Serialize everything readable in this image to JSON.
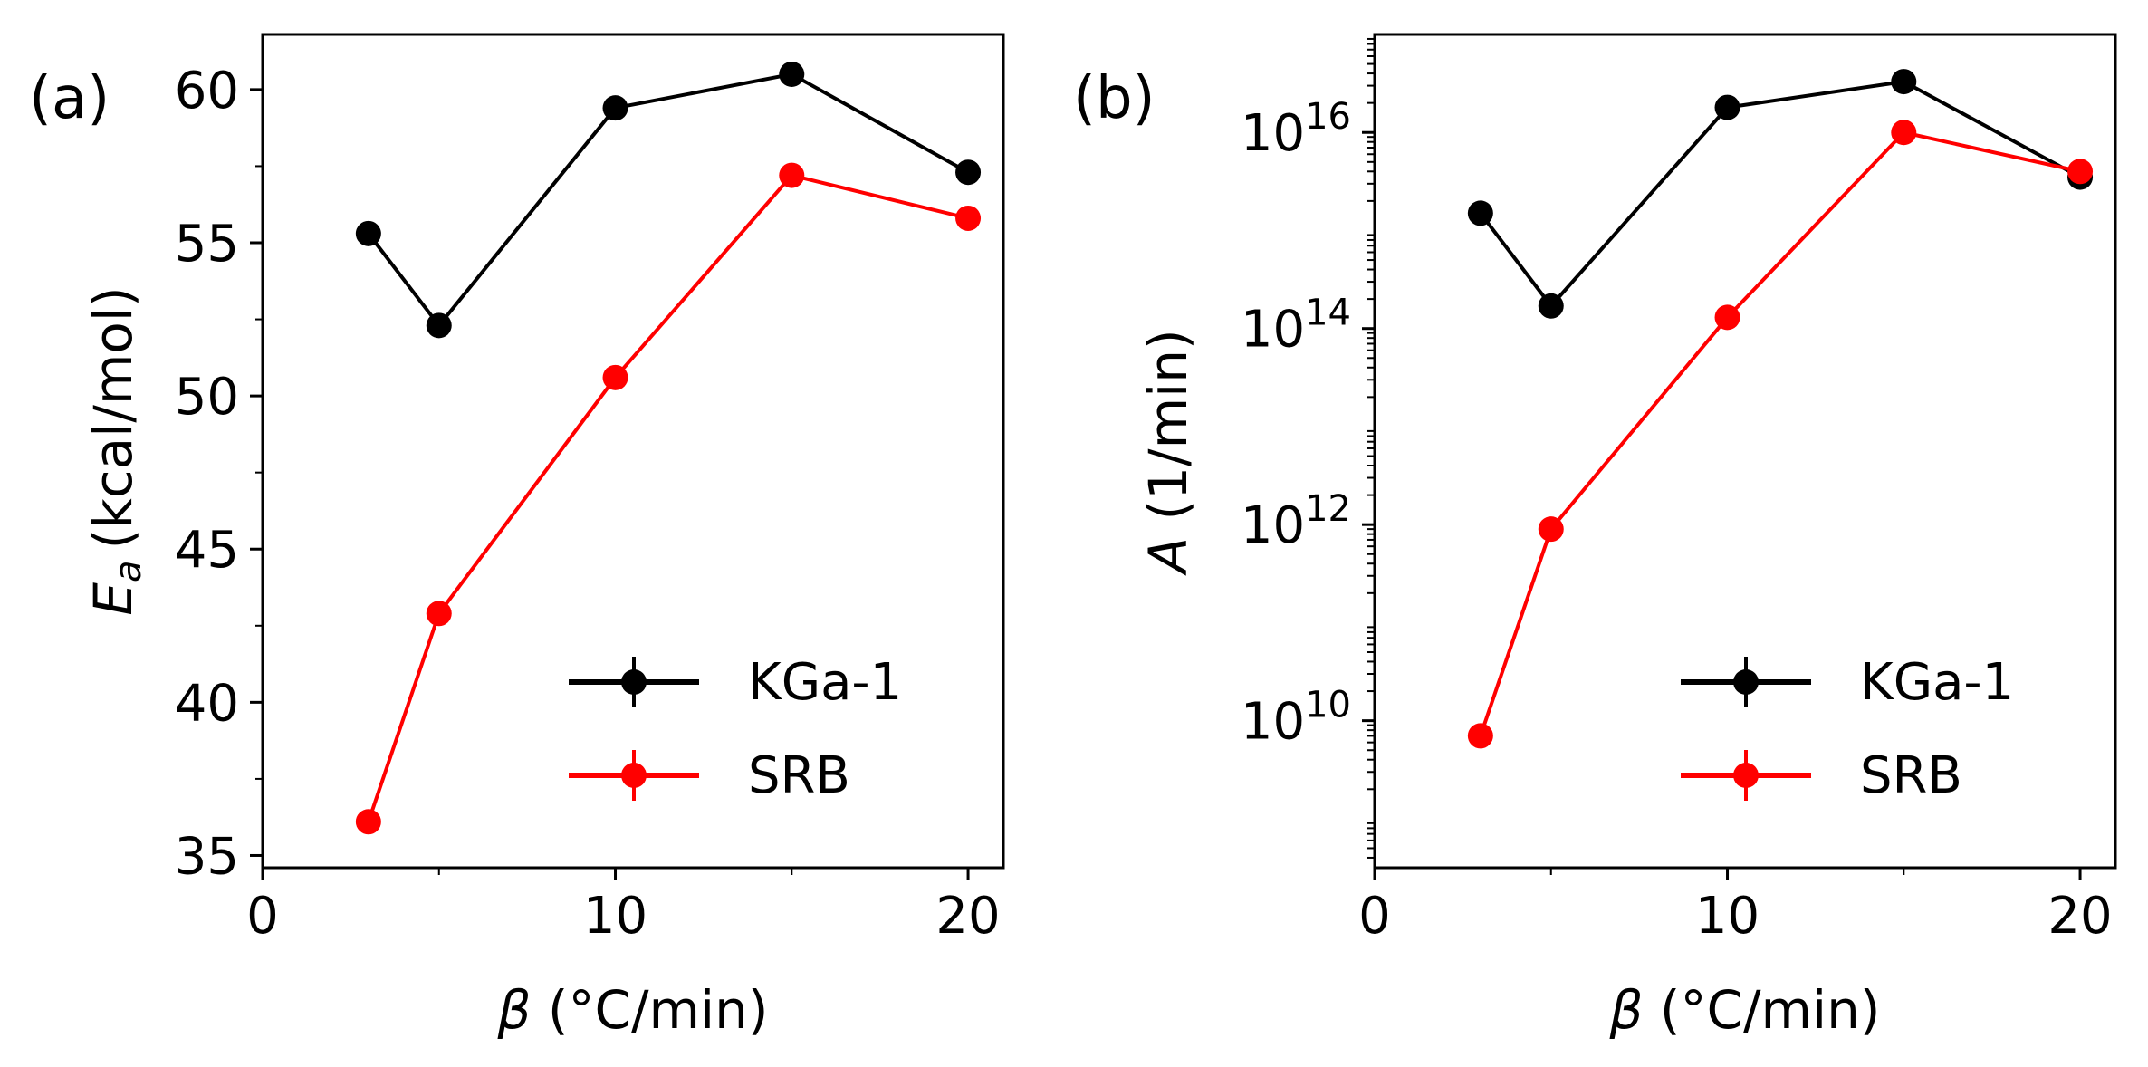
{
  "chart_data": [
    {
      "type": "line",
      "panel_label": "(a)",
      "x": [
        3,
        5,
        10,
        15,
        20
      ],
      "series": [
        {
          "name": "KGa-1",
          "color": "#000000",
          "values": [
            55.3,
            52.3,
            59.4,
            60.5,
            57.3
          ]
        },
        {
          "name": "SRB",
          "color": "#ff0000",
          "values": [
            36.1,
            42.9,
            50.6,
            57.2,
            55.8
          ]
        }
      ],
      "xlabel_symbol": "β",
      "xlabel_unit": "(°C/min)",
      "ylabel_symbol": "E",
      "ylabel_subscript": "a",
      "ylabel_unit": "(kcal/mol)",
      "xlim": [
        0,
        21
      ],
      "ylim": [
        34.6,
        61.8
      ],
      "xticks": [
        0,
        10,
        20
      ],
      "xtick_labels": [
        "0",
        "10",
        "20"
      ],
      "xminor": [
        5,
        15
      ],
      "yscale": "linear",
      "yticks": [
        35,
        40,
        45,
        50,
        55,
        60
      ],
      "ytick_labels": [
        "35",
        "40",
        "45",
        "50",
        "55",
        "60"
      ],
      "yminor": [
        37.5,
        42.5,
        47.5,
        52.5,
        57.5
      ],
      "legend_position": "lower-right"
    },
    {
      "type": "line",
      "panel_label": "(b)",
      "x": [
        3,
        5,
        10,
        15,
        20
      ],
      "series": [
        {
          "name": "KGa-1",
          "color": "#000000",
          "values": [
            1500000000000000.0,
            170000000000000.0,
            1.8e+16,
            3.3e+16,
            3500000000000000.0
          ]
        },
        {
          "name": "SRB",
          "color": "#ff0000",
          "values": [
            7000000000.0,
            900000000000.0,
            130000000000000.0,
            1e+16,
            4000000000000000.0
          ]
        }
      ],
      "xlabel_symbol": "β",
      "xlabel_unit": "(°C/min)",
      "ylabel_symbol": "A",
      "ylabel_unit": "(1/min)",
      "xlim": [
        0,
        21
      ],
      "ylim_log10": [
        8.5,
        17.0
      ],
      "xticks": [
        0,
        10,
        20
      ],
      "xtick_labels": [
        "0",
        "10",
        "20"
      ],
      "xminor": [
        5,
        15
      ],
      "yscale": "log",
      "yticks_exp": [
        10,
        12,
        14,
        16
      ],
      "ytick_base": "10",
      "ytick_exponents": [
        "10",
        "12",
        "14",
        "16"
      ],
      "legend_position": "lower-right"
    }
  ]
}
